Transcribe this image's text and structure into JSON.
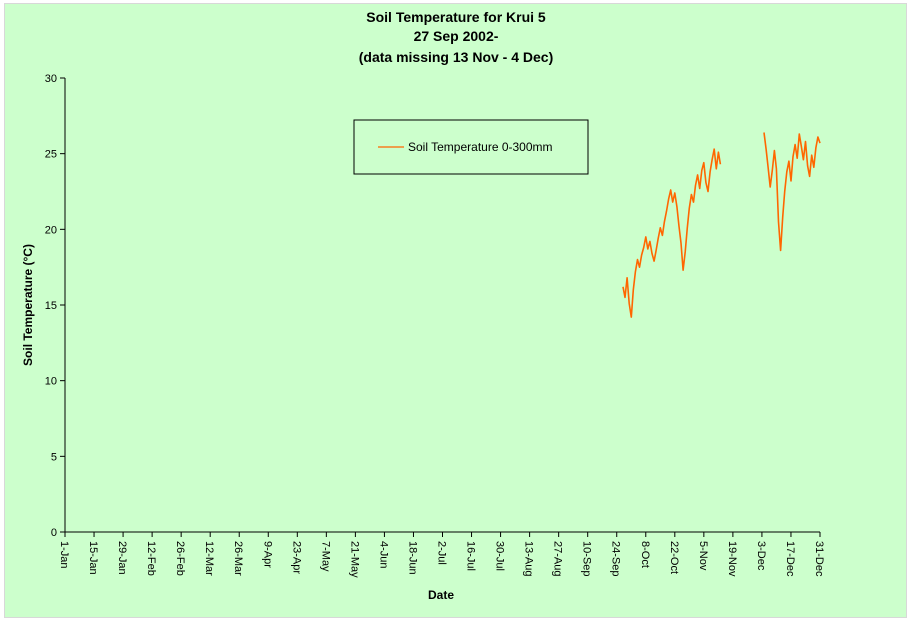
{
  "chart_data": {
    "type": "line",
    "title_lines": [
      "Soil Temperature for Krui 5",
      "27 Sep 2002-",
      "(data missing 13 Nov - 4 Dec)"
    ],
    "xlabel": "Date",
    "ylabel": "Soil Temperature (°C)",
    "ylim": [
      0,
      30
    ],
    "yticks": [
      0,
      5,
      10,
      15,
      20,
      25,
      30
    ],
    "xticks": [
      "1-Jan",
      "15-Jan",
      "29-Jan",
      "12-Feb",
      "26-Feb",
      "12-Mar",
      "26-Mar",
      "9-Apr",
      "23-Apr",
      "7-May",
      "21-May",
      "4-Jun",
      "18-Jun",
      "2-Jul",
      "16-Jul",
      "30-Jul",
      "13-Aug",
      "27-Aug",
      "10-Sep",
      "24-Sep",
      "8-Oct",
      "22-Oct",
      "5-Nov",
      "19-Nov",
      "3-Dec",
      "17-Dec",
      "31-Dec"
    ],
    "xlim": [
      "1-Jan",
      "31-Dec"
    ],
    "grid": false,
    "legend_position": "top-center",
    "series": [
      {
        "name": "Soil Temperature  0-300mm",
        "color": "#ff6600",
        "segments": [
          [
            [
              "27-Sep",
              16.2
            ],
            [
              "28-Sep",
              15.5
            ],
            [
              "29-Sep",
              16.8
            ],
            [
              "30-Sep",
              15.1
            ],
            [
              "1-Oct",
              14.2
            ],
            [
              "2-Oct",
              16.0
            ],
            [
              "3-Oct",
              17.2
            ],
            [
              "4-Oct",
              18.0
            ],
            [
              "5-Oct",
              17.5
            ],
            [
              "6-Oct",
              18.3
            ],
            [
              "7-Oct",
              18.8
            ],
            [
              "8-Oct",
              19.5
            ],
            [
              "9-Oct",
              18.7
            ],
            [
              "10-Oct",
              19.2
            ],
            [
              "11-Oct",
              18.4
            ],
            [
              "12-Oct",
              17.9
            ],
            [
              "13-Oct",
              18.6
            ],
            [
              "14-Oct",
              19.4
            ],
            [
              "15-Oct",
              20.1
            ],
            [
              "16-Oct",
              19.6
            ],
            [
              "17-Oct",
              20.5
            ],
            [
              "18-Oct",
              21.2
            ],
            [
              "19-Oct",
              22.0
            ],
            [
              "20-Oct",
              22.6
            ],
            [
              "21-Oct",
              21.8
            ],
            [
              "22-Oct",
              22.4
            ],
            [
              "23-Oct",
              21.5
            ],
            [
              "24-Oct",
              20.2
            ],
            [
              "25-Oct",
              19.1
            ],
            [
              "26-Oct",
              17.3
            ],
            [
              "27-Oct",
              18.5
            ],
            [
              "28-Oct",
              20.1
            ],
            [
              "29-Oct",
              21.4
            ],
            [
              "30-Oct",
              22.3
            ],
            [
              "31-Oct",
              21.8
            ],
            [
              "1-Nov",
              22.9
            ],
            [
              "2-Nov",
              23.6
            ],
            [
              "3-Nov",
              22.7
            ],
            [
              "4-Nov",
              23.9
            ],
            [
              "5-Nov",
              24.4
            ],
            [
              "6-Nov",
              23.1
            ],
            [
              "7-Nov",
              22.5
            ],
            [
              "8-Nov",
              23.8
            ],
            [
              "9-Nov",
              24.6
            ],
            [
              "10-Nov",
              25.3
            ],
            [
              "11-Nov",
              24.0
            ],
            [
              "12-Nov",
              25.1
            ],
            [
              "13-Nov",
              24.3
            ]
          ],
          [
            [
              "4-Dec",
              26.4
            ],
            [
              "5-Dec",
              25.3
            ],
            [
              "6-Dec",
              24.1
            ],
            [
              "7-Dec",
              22.8
            ],
            [
              "8-Dec",
              23.9
            ],
            [
              "9-Dec",
              25.2
            ],
            [
              "10-Dec",
              24.0
            ],
            [
              "11-Dec",
              20.5
            ],
            [
              "12-Dec",
              18.6
            ],
            [
              "13-Dec",
              20.8
            ],
            [
              "14-Dec",
              22.5
            ],
            [
              "15-Dec",
              23.8
            ],
            [
              "16-Dec",
              24.5
            ],
            [
              "17-Dec",
              23.2
            ],
            [
              "18-Dec",
              24.8
            ],
            [
              "19-Dec",
              25.6
            ],
            [
              "20-Dec",
              24.7
            ],
            [
              "21-Dec",
              26.3
            ],
            [
              "22-Dec",
              25.5
            ],
            [
              "23-Dec",
              24.6
            ],
            [
              "24-Dec",
              25.8
            ],
            [
              "25-Dec",
              24.2
            ],
            [
              "26-Dec",
              23.5
            ],
            [
              "27-Dec",
              24.9
            ],
            [
              "28-Dec",
              24.1
            ],
            [
              "29-Dec",
              25.4
            ],
            [
              "30-Dec",
              26.1
            ],
            [
              "31-Dec",
              25.7
            ]
          ]
        ]
      }
    ]
  }
}
